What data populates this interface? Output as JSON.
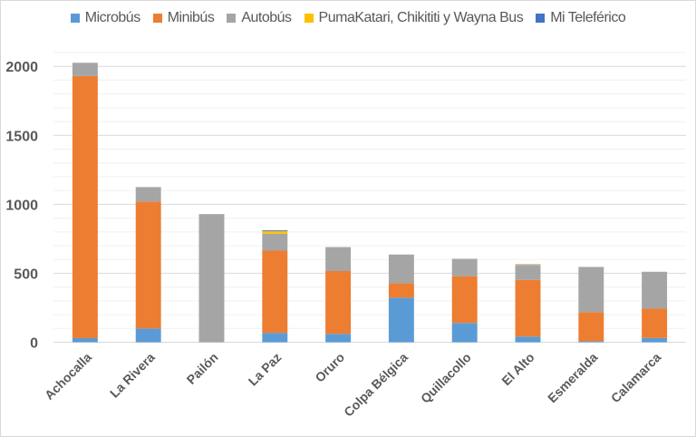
{
  "chart_data": {
    "type": "bar",
    "stacked": true,
    "title": "",
    "xlabel": "",
    "ylabel": "",
    "ylim": [
      0,
      2100
    ],
    "yticks": [
      0,
      500,
      1000,
      1500,
      2000
    ],
    "grid": true,
    "minor_grid_step": 100,
    "legend_position": "top",
    "categories": [
      "Achocalla",
      "La Rivera",
      "Pailón",
      "La Paz",
      "Oruro",
      "Colpa Bélgica",
      "Quillacollo",
      "El Alto",
      "Esmeralda",
      "Calamarca"
    ],
    "series": [
      {
        "name": "Microbús",
        "color": "#5b9bd5",
        "values": [
          30,
          100,
          0,
          68,
          61,
          323,
          140,
          41,
          7,
          31
        ]
      },
      {
        "name": "Minibús",
        "color": "#ed7d31",
        "values": [
          1900,
          920,
          0,
          596,
          455,
          105,
          339,
          411,
          211,
          212
        ]
      },
      {
        "name": "Autobús",
        "color": "#a5a5a5",
        "values": [
          96,
          105,
          929,
          123,
          174,
          208,
          126,
          108,
          328,
          268
        ]
      },
      {
        "name": "PumaKatari, Chikititi y Wayna Bus",
        "color": "#ffc000",
        "values": [
          0,
          0,
          0,
          18,
          0,
          0,
          0,
          4,
          0,
          0
        ]
      },
      {
        "name": "Mi Teleférico",
        "color": "#4472c4",
        "values": [
          0,
          0,
          0,
          6,
          0,
          0,
          0,
          2,
          0,
          0
        ]
      }
    ]
  }
}
